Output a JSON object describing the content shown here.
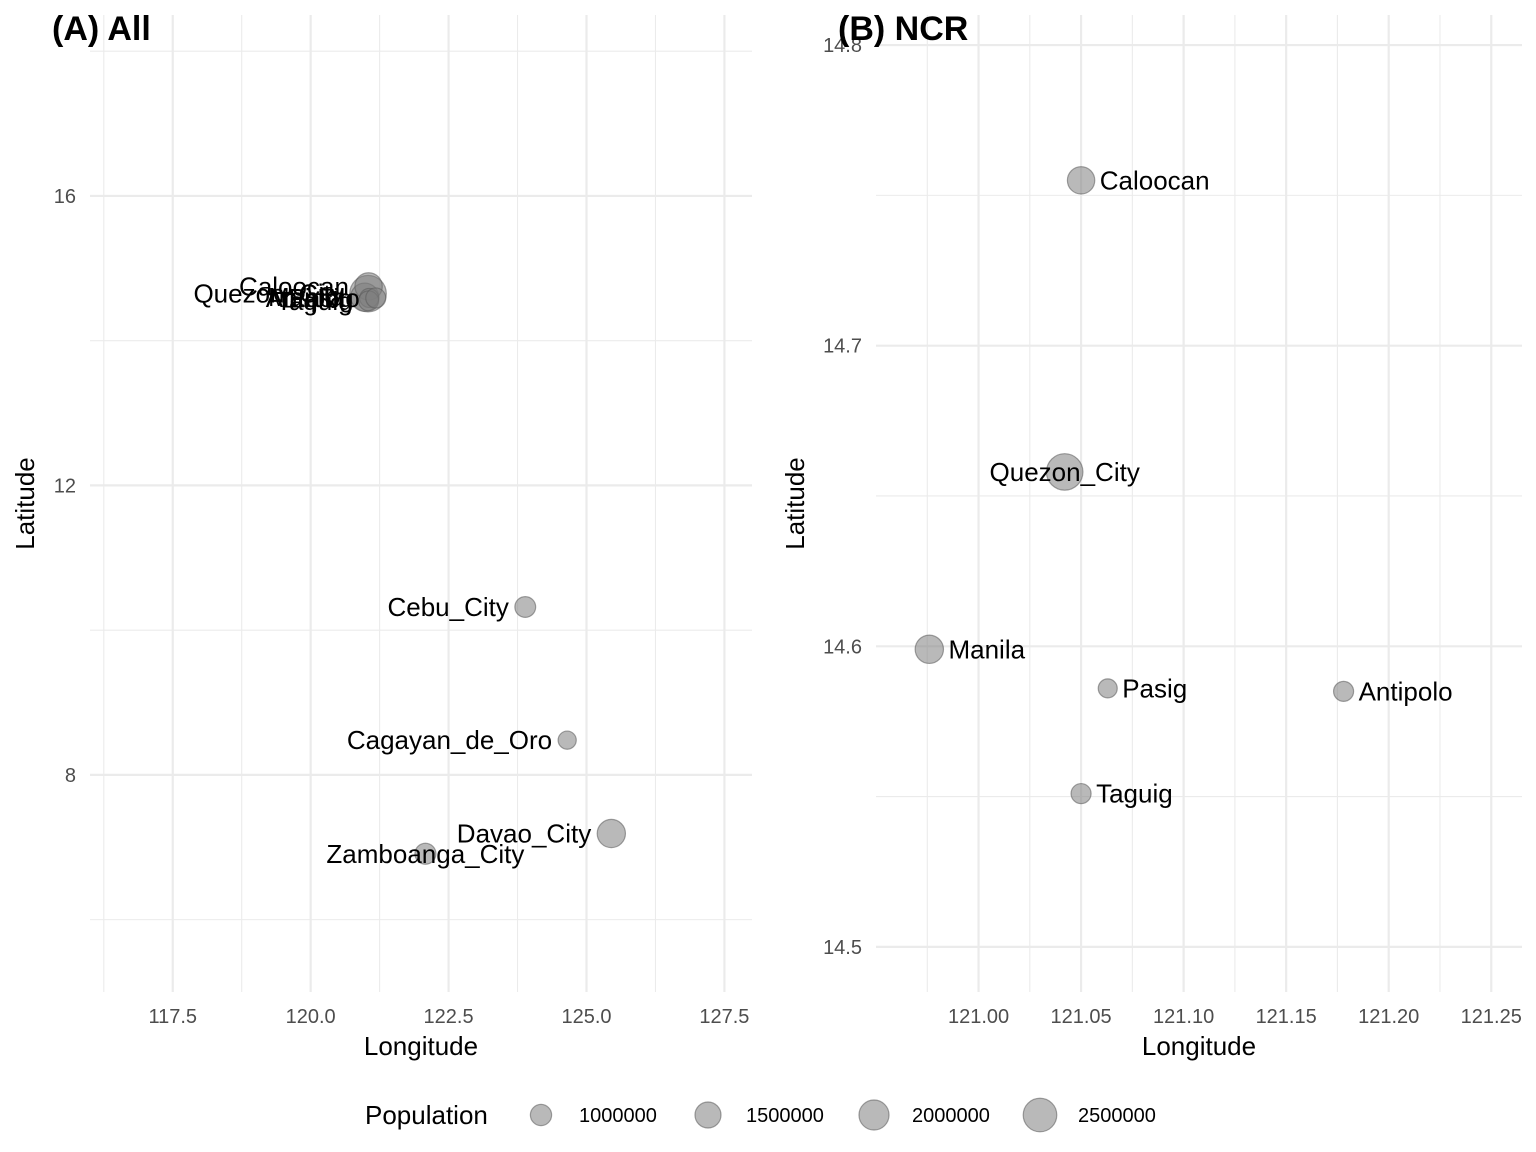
{
  "chart_data": [
    {
      "type": "scatter",
      "title": "(A) All",
      "xlabel": "Longitude",
      "ylabel": "Latitude",
      "xlim": [
        116.0,
        128.0
      ],
      "ylim": [
        5.0,
        18.5
      ],
      "x_ticks": [
        117.5,
        120.0,
        122.5,
        125.0,
        127.5
      ],
      "x_tick_labels": [
        "117.5",
        "120.0",
        "122.5",
        "125.0",
        "127.5"
      ],
      "y_ticks": [
        8,
        12,
        16
      ],
      "y_tick_labels": [
        "8",
        "12",
        "16"
      ],
      "grid": true,
      "points": [
        {
          "label": "Quezon_City",
          "x": 121.04,
          "y": 14.65,
          "population": 2960000,
          "label_anchor": "end"
        },
        {
          "label": "Manila",
          "x": 120.98,
          "y": 14.6,
          "population": 1780000,
          "label_anchor": "end"
        },
        {
          "label": "Caloocan",
          "x": 121.05,
          "y": 14.75,
          "population": 1660000,
          "label_anchor": "end"
        },
        {
          "label": "Pasig",
          "x": 121.06,
          "y": 14.59,
          "population": 800000,
          "label_anchor": "end"
        },
        {
          "label": "Taguig",
          "x": 121.05,
          "y": 14.55,
          "population": 890000,
          "label_anchor": "end"
        },
        {
          "label": "Antipolo",
          "x": 121.18,
          "y": 14.59,
          "population": 890000,
          "label_anchor": "end"
        },
        {
          "label": "Cebu_City",
          "x": 123.89,
          "y": 10.32,
          "population": 960000,
          "label_anchor": "end"
        },
        {
          "label": "Cagayan_de_Oro",
          "x": 124.65,
          "y": 8.48,
          "population": 730000,
          "label_anchor": "end"
        },
        {
          "label": "Davao_City",
          "x": 125.45,
          "y": 7.19,
          "population": 1770000,
          "label_anchor": "end"
        },
        {
          "label": "Zamboanga_City",
          "x": 122.08,
          "y": 6.91,
          "population": 980000,
          "label_anchor": "middle"
        }
      ]
    },
    {
      "type": "scatter",
      "title": "(B) NCR",
      "xlabel": "Longitude",
      "ylabel": "Latitude",
      "xlim": [
        120.95,
        121.265
      ],
      "ylim": [
        14.485,
        14.81
      ],
      "x_ticks": [
        121.0,
        121.05,
        121.1,
        121.15,
        121.2,
        121.25
      ],
      "x_tick_labels": [
        "121.00",
        "121.05",
        "121.10",
        "121.15",
        "121.20",
        "121.25"
      ],
      "y_ticks": [
        14.5,
        14.6,
        14.7,
        14.8
      ],
      "y_tick_labels": [
        "14.5",
        "14.6",
        "14.7",
        "14.8"
      ],
      "grid": true,
      "points": [
        {
          "label": "Caloocan",
          "x": 121.05,
          "y": 14.755,
          "population": 1660000,
          "label_anchor": "start"
        },
        {
          "label": "Quezon_City",
          "x": 121.042,
          "y": 14.658,
          "population": 2960000,
          "label_anchor": "middle"
        },
        {
          "label": "Manila",
          "x": 120.976,
          "y": 14.599,
          "population": 1780000,
          "label_anchor": "start"
        },
        {
          "label": "Pasig",
          "x": 121.063,
          "y": 14.586,
          "population": 800000,
          "label_anchor": "start"
        },
        {
          "label": "Antipolo",
          "x": 121.178,
          "y": 14.585,
          "population": 890000,
          "label_anchor": "start"
        },
        {
          "label": "Taguig",
          "x": 121.05,
          "y": 14.551,
          "population": 890000,
          "label_anchor": "start"
        }
      ]
    }
  ],
  "legend": {
    "title": "Population",
    "position": "bottom",
    "entries": [
      {
        "label": "1000000",
        "value": 1000000
      },
      {
        "label": "1500000",
        "value": 1500000
      },
      {
        "label": "2000000",
        "value": 2000000
      },
      {
        "label": "2500000",
        "value": 2500000
      }
    ]
  },
  "colors": {
    "point": "#7f7f7f",
    "grid": "#ebebeb",
    "tick_text": "#4d4d4d"
  }
}
